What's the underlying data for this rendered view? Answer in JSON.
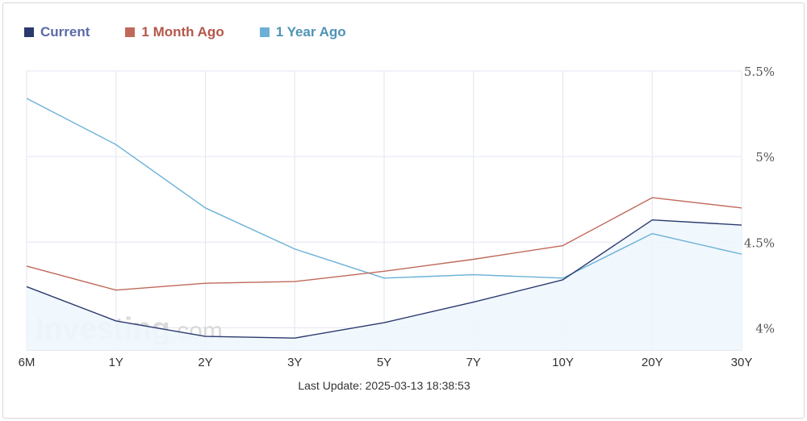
{
  "chart_data": {
    "type": "line",
    "categories": [
      "6M",
      "1Y",
      "2Y",
      "3Y",
      "5Y",
      "7Y",
      "10Y",
      "20Y",
      "30Y"
    ],
    "series": [
      {
        "name": "Current",
        "color": "#2b3a6e",
        "filled": true,
        "values": [
          4.24,
          4.04,
          3.95,
          3.94,
          4.03,
          4.15,
          4.28,
          4.63,
          4.6
        ]
      },
      {
        "name": "1 Month Ago",
        "color": "#c0695a",
        "values": [
          4.36,
          4.22,
          4.26,
          4.27,
          4.33,
          4.4,
          4.48,
          4.76,
          4.7
        ]
      },
      {
        "name": "1 Year Ago",
        "color": "#6bb1d6",
        "values": [
          5.34,
          5.07,
          4.7,
          4.46,
          4.29,
          4.31,
          4.29,
          4.55,
          4.43
        ]
      }
    ],
    "y_ticks": [
      "4%",
      "4.5%",
      "5%",
      "5.5%"
    ],
    "y_tick_values": [
      4.0,
      4.5,
      5.0,
      5.5
    ],
    "ylim": [
      3.87,
      5.5
    ],
    "grid": true,
    "legend_position": "top-left",
    "colors": {
      "grid": "#e3e6f3",
      "fill": "#eef6fd"
    },
    "title": "",
    "xlabel": "",
    "ylabel": ""
  },
  "legend_colors": {
    "current_text": "#5a6aa6",
    "month_text": "#b4574a",
    "year_text": "#4f93b6"
  },
  "watermark": {
    "text": "Investing",
    "suffix": ".com"
  },
  "footer": {
    "last_update": "Last Update: 2025-03-13 18:38:53"
  }
}
